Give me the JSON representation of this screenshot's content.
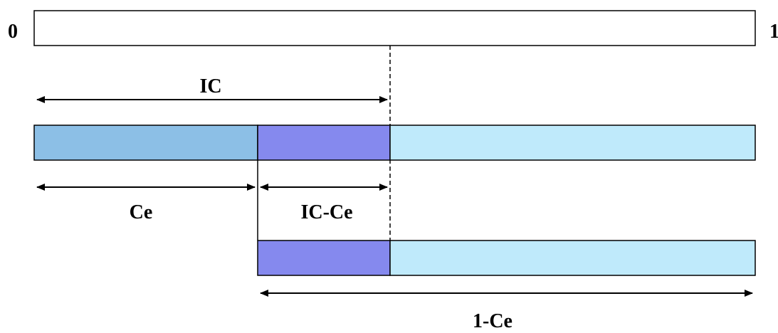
{
  "scale": {
    "start_label": "0",
    "end_label": "1"
  },
  "measures": {
    "ic": "IC",
    "ce": "Ce",
    "ic_minus_ce": "IC-Ce",
    "one_minus_ce": "1-Ce"
  },
  "colors": {
    "outline": "#000000",
    "ce_segment": "#8cbfe6",
    "ic_minus_ce_segment": "#8589ee",
    "remainder_segment": "#bfeafb"
  }
}
